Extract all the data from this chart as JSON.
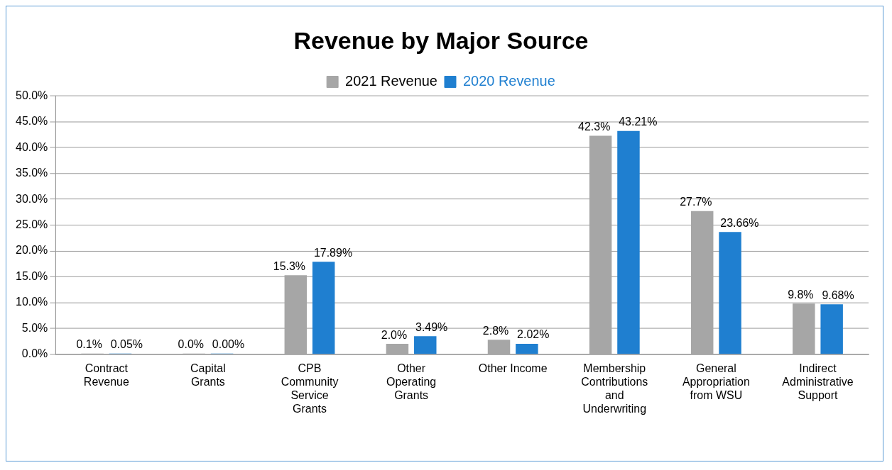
{
  "chart_data": {
    "type": "bar",
    "title": "Revenue by Major Source",
    "categories": [
      "Contract Revenue",
      "Capital Grants",
      "CPB Community Service Grants",
      "Other Operating Grants",
      "Other Income",
      "Membership Contributions and Underwriting",
      "General Appropriation from WSU",
      "Indirect Administrative Support"
    ],
    "series": [
      {
        "name": "2021 Revenue",
        "color": "#a6a6a6",
        "values": [
          0.1,
          0.0,
          15.3,
          2.0,
          2.8,
          42.3,
          27.7,
          9.8
        ],
        "value_labels": [
          "0.1%",
          "0.0%",
          "15.3%",
          "2.0%",
          "2.8%",
          "42.3%",
          "27.7%",
          "9.8%"
        ]
      },
      {
        "name": "2020 Revenue",
        "color": "#1f7fd0",
        "values": [
          0.05,
          0.0,
          17.89,
          3.49,
          2.02,
          43.21,
          23.66,
          9.68
        ],
        "value_labels": [
          "0.05%",
          "0.00%",
          "17.89%",
          "3.49%",
          "2.02%",
          "43.21%",
          "23.66%",
          "9.68%"
        ]
      }
    ],
    "ylim": [
      0,
      50
    ],
    "yticks": [
      {
        "value": 0,
        "label": "0.0%"
      },
      {
        "value": 5,
        "label": "5.0%"
      },
      {
        "value": 10,
        "label": "10.0%"
      },
      {
        "value": 15,
        "label": "15.0%"
      },
      {
        "value": 20,
        "label": "20.0%"
      },
      {
        "value": 25,
        "label": "25.0%"
      },
      {
        "value": 30,
        "label": "30.0%"
      },
      {
        "value": 35,
        "label": "35.0%"
      },
      {
        "value": 40,
        "label": "40.0%"
      },
      {
        "value": 45,
        "label": "45.0%"
      },
      {
        "value": 50,
        "label": "50.0%"
      }
    ],
    "grid": "y",
    "legend": "top"
  }
}
